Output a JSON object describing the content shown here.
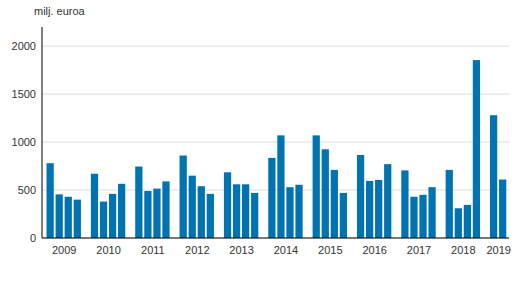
{
  "chart_data": {
    "type": "bar",
    "y_label": "milj. euroa",
    "categories": [
      "2009",
      null,
      null,
      null,
      "2010",
      null,
      null,
      null,
      "2011",
      null,
      null,
      null,
      "2012",
      null,
      null,
      null,
      "2013",
      null,
      null,
      null,
      "2014",
      null,
      null,
      null,
      "2015",
      null,
      null,
      null,
      "2016",
      null,
      null,
      null,
      "2017",
      null,
      null,
      null,
      "2018",
      null,
      null,
      null,
      "2019",
      null
    ],
    "values": [
      780,
      455,
      430,
      400,
      670,
      380,
      460,
      565,
      745,
      490,
      515,
      590,
      860,
      650,
      540,
      460,
      685,
      560,
      560,
      470,
      835,
      1070,
      530,
      555,
      1070,
      925,
      710,
      470,
      865,
      595,
      605,
      770,
      705,
      430,
      450,
      530,
      710,
      310,
      345,
      1855,
      1280,
      610
    ],
    "color": "#0073b0",
    "ylim": [
      0,
      2200
    ],
    "yticks": [
      0,
      500,
      1000,
      1500,
      2000
    ],
    "grid": true
  }
}
